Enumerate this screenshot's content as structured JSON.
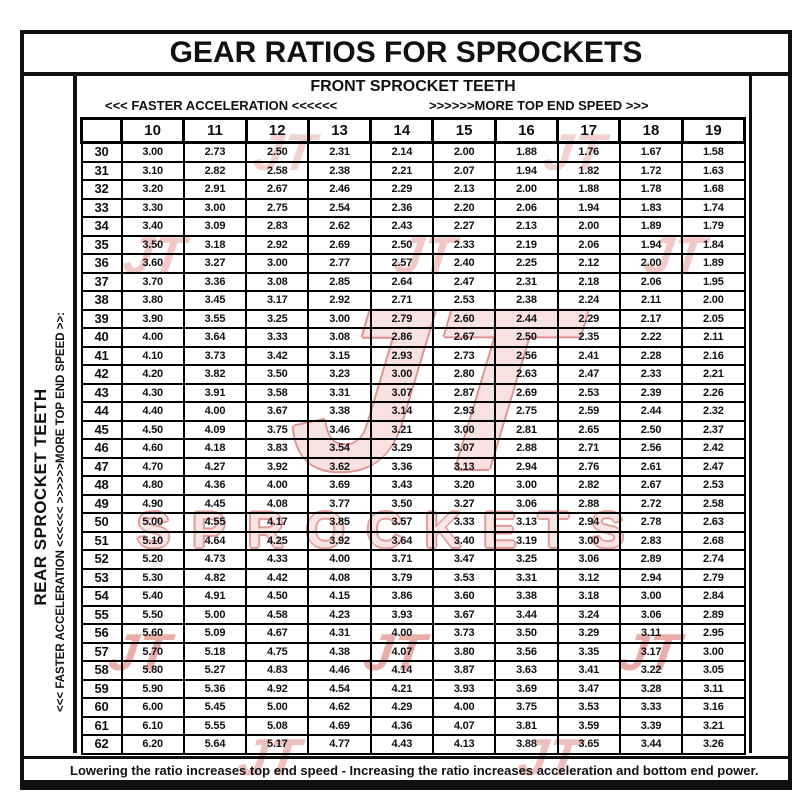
{
  "title": "GEAR RATIOS FOR SPROCKETS",
  "front_axis": {
    "label": "FRONT SPROCKET TEETH",
    "left_arrow_label": "<<< FASTER  ACCELERATION <<<<<<",
    "right_arrow_label": ">>>>>>MORE TOP END SPEED >>>"
  },
  "rear_axis": {
    "label": "REAR SPROCKET TEETH",
    "arrow_label": "<<< FASTER  ACCELERATION <<<<<<        >>>>>>MORE TOP END SPEED >>:"
  },
  "footnote": "Lowering the ratio increases top end speed - Increasing the ratio increases acceleration and bottom end power.",
  "watermark": {
    "jt": "JT",
    "sprockets": "SPROCKETS",
    "red": "#c43c36",
    "pink": "#f2cbc8"
  },
  "chart_data": {
    "type": "table",
    "title": "GEAR RATIOS FOR SPROCKETS",
    "x_axis_label": "FRONT SPROCKET TEETH",
    "y_axis_label": "REAR SPROCKET TEETH",
    "front_teeth": [
      "10",
      "11",
      "12",
      "13",
      "14",
      "15",
      "16",
      "17",
      "18",
      "19"
    ],
    "rows": [
      {
        "rear": "30",
        "ratios": [
          "3.00",
          "2.73",
          "2.50",
          "2.31",
          "2.14",
          "2.00",
          "1.88",
          "1.76",
          "1.67",
          "1.58"
        ]
      },
      {
        "rear": "31",
        "ratios": [
          "3.10",
          "2.82",
          "2.58",
          "2.38",
          "2.21",
          "2.07",
          "1.94",
          "1.82",
          "1.72",
          "1.63"
        ]
      },
      {
        "rear": "32",
        "ratios": [
          "3.20",
          "2.91",
          "2.67",
          "2.46",
          "2.29",
          "2.13",
          "2.00",
          "1.88",
          "1.78",
          "1.68"
        ]
      },
      {
        "rear": "33",
        "ratios": [
          "3.30",
          "3.00",
          "2.75",
          "2.54",
          "2.36",
          "2.20",
          "2.06",
          "1.94",
          "1.83",
          "1.74"
        ]
      },
      {
        "rear": "34",
        "ratios": [
          "3.40",
          "3.09",
          "2.83",
          "2.62",
          "2.43",
          "2.27",
          "2.13",
          "2.00",
          "1.89",
          "1.79"
        ]
      },
      {
        "rear": "35",
        "ratios": [
          "3.50",
          "3.18",
          "2.92",
          "2.69",
          "2.50",
          "2.33",
          "2.19",
          "2.06",
          "1.94",
          "1.84"
        ]
      },
      {
        "rear": "36",
        "ratios": [
          "3.60",
          "3.27",
          "3.00",
          "2.77",
          "2.57",
          "2.40",
          "2.25",
          "2.12",
          "2.00",
          "1.89"
        ]
      },
      {
        "rear": "37",
        "ratios": [
          "3.70",
          "3.36",
          "3.08",
          "2.85",
          "2.64",
          "2.47",
          "2.31",
          "2.18",
          "2.06",
          "1.95"
        ]
      },
      {
        "rear": "38",
        "ratios": [
          "3.80",
          "3.45",
          "3.17",
          "2.92",
          "2.71",
          "2.53",
          "2.38",
          "2.24",
          "2.11",
          "2.00"
        ]
      },
      {
        "rear": "39",
        "ratios": [
          "3.90",
          "3.55",
          "3.25",
          "3.00",
          "2.79",
          "2.60",
          "2.44",
          "2.29",
          "2.17",
          "2.05"
        ]
      },
      {
        "rear": "40",
        "ratios": [
          "4.00",
          "3.64",
          "3.33",
          "3.08",
          "2.86",
          "2.67",
          "2.50",
          "2.35",
          "2.22",
          "2.11"
        ]
      },
      {
        "rear": "41",
        "ratios": [
          "4.10",
          "3.73",
          "3.42",
          "3.15",
          "2.93",
          "2.73",
          "2.56",
          "2.41",
          "2.28",
          "2.16"
        ]
      },
      {
        "rear": "42",
        "ratios": [
          "4.20",
          "3.82",
          "3.50",
          "3.23",
          "3.00",
          "2.80",
          "2.63",
          "2.47",
          "2.33",
          "2.21"
        ]
      },
      {
        "rear": "43",
        "ratios": [
          "4.30",
          "3.91",
          "3.58",
          "3.31",
          "3.07",
          "2.87",
          "2.69",
          "2.53",
          "2.39",
          "2.26"
        ]
      },
      {
        "rear": "44",
        "ratios": [
          "4.40",
          "4.00",
          "3.67",
          "3.38",
          "3.14",
          "2.93",
          "2.75",
          "2.59",
          "2.44",
          "2.32"
        ]
      },
      {
        "rear": "45",
        "ratios": [
          "4.50",
          "4.09",
          "3.75",
          "3.46",
          "3.21",
          "3.00",
          "2.81",
          "2.65",
          "2.50",
          "2.37"
        ]
      },
      {
        "rear": "46",
        "ratios": [
          "4.60",
          "4.18",
          "3.83",
          "3.54",
          "3.29",
          "3.07",
          "2.88",
          "2.71",
          "2.56",
          "2.42"
        ]
      },
      {
        "rear": "47",
        "ratios": [
          "4.70",
          "4.27",
          "3.92",
          "3.62",
          "3.36",
          "3.13",
          "2.94",
          "2.76",
          "2.61",
          "2.47"
        ]
      },
      {
        "rear": "48",
        "ratios": [
          "4.80",
          "4.36",
          "4.00",
          "3.69",
          "3.43",
          "3.20",
          "3.00",
          "2.82",
          "2.67",
          "2.53"
        ]
      },
      {
        "rear": "49",
        "ratios": [
          "4.90",
          "4.45",
          "4.08",
          "3.77",
          "3.50",
          "3.27",
          "3.06",
          "2.88",
          "2.72",
          "2.58"
        ]
      },
      {
        "rear": "50",
        "ratios": [
          "5.00",
          "4.55",
          "4.17",
          "3.85",
          "3.57",
          "3.33",
          "3.13",
          "2.94",
          "2.78",
          "2.63"
        ]
      },
      {
        "rear": "51",
        "ratios": [
          "5.10",
          "4.64",
          "4.25",
          "3.92",
          "3.64",
          "3.40",
          "3.19",
          "3.00",
          "2.83",
          "2.68"
        ]
      },
      {
        "rear": "52",
        "ratios": [
          "5.20",
          "4.73",
          "4.33",
          "4.00",
          "3.71",
          "3.47",
          "3.25",
          "3.06",
          "2.89",
          "2.74"
        ]
      },
      {
        "rear": "53",
        "ratios": [
          "5.30",
          "4.82",
          "4.42",
          "4.08",
          "3.79",
          "3.53",
          "3.31",
          "3.12",
          "2.94",
          "2.79"
        ]
      },
      {
        "rear": "54",
        "ratios": [
          "5.40",
          "4.91",
          "4.50",
          "4.15",
          "3.86",
          "3.60",
          "3.38",
          "3.18",
          "3.00",
          "2.84"
        ]
      },
      {
        "rear": "55",
        "ratios": [
          "5.50",
          "5.00",
          "4.58",
          "4.23",
          "3.93",
          "3.67",
          "3.44",
          "3.24",
          "3.06",
          "2.89"
        ]
      },
      {
        "rear": "56",
        "ratios": [
          "5.60",
          "5.09",
          "4.67",
          "4.31",
          "4.00",
          "3.73",
          "3.50",
          "3.29",
          "3.11",
          "2.95"
        ]
      },
      {
        "rear": "57",
        "ratios": [
          "5.70",
          "5.18",
          "4.75",
          "4.38",
          "4.07",
          "3.80",
          "3.56",
          "3.35",
          "3.17",
          "3.00"
        ]
      },
      {
        "rear": "58",
        "ratios": [
          "5.80",
          "5.27",
          "4.83",
          "4.46",
          "4.14",
          "3.87",
          "3.63",
          "3.41",
          "3.22",
          "3.05"
        ]
      },
      {
        "rear": "59",
        "ratios": [
          "5.90",
          "5.36",
          "4.92",
          "4.54",
          "4.21",
          "3.93",
          "3.69",
          "3.47",
          "3.28",
          "3.11"
        ]
      },
      {
        "rear": "60",
        "ratios": [
          "6.00",
          "5.45",
          "5.00",
          "4.62",
          "4.29",
          "4.00",
          "3.75",
          "3.53",
          "3.33",
          "3.16"
        ]
      },
      {
        "rear": "61",
        "ratios": [
          "6.10",
          "5.55",
          "5.08",
          "4.69",
          "4.36",
          "4.07",
          "3.81",
          "3.59",
          "3.39",
          "3.21"
        ]
      },
      {
        "rear": "62",
        "ratios": [
          "6.20",
          "5.64",
          "5.17",
          "4.77",
          "4.43",
          "4.13",
          "3.88",
          "3.65",
          "3.44",
          "3.26"
        ]
      }
    ]
  }
}
